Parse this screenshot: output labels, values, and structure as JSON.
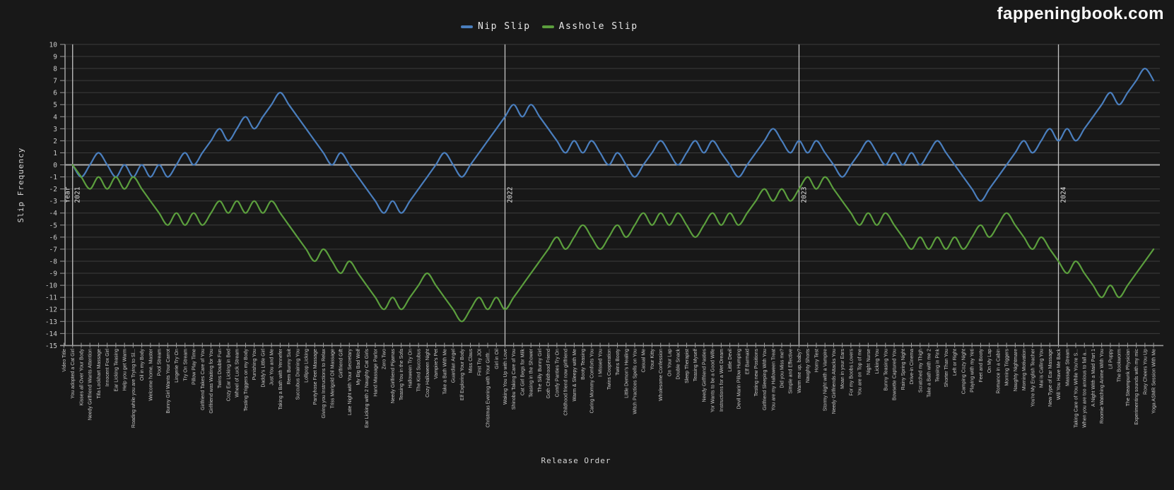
{
  "header": {
    "logo": "fappeningbook.com"
  },
  "chart_data": {
    "type": "line",
    "title": "",
    "xlabel": "Release Order",
    "ylabel": "Slip Frequency",
    "ylim": [
      -15,
      10
    ],
    "grid": true,
    "legend_position": "top-center",
    "background": "#181818",
    "categories": [
      "Video Title",
      "You adopted a Cat Girl",
      "Kisses all Over Your Body",
      "Needy Girlfriend Wants Attention",
      "Tifa Lockhart Massage",
      "Innocent Fox Girl",
      "Ear Licking Teasing",
      "Help you get Warm",
      "Roading while you are Trying to Sl...",
      "Oil in my Body",
      "Welcome home, Master",
      "Pool Stream",
      "Bunny Girl Wants Your Carrot",
      "Lingerie Try On",
      "Try On Stream",
      "Pillow Play Time",
      "Girlfriend Takes Care of You",
      "Girlfriend was Waiting for You",
      "Twins Double Fun",
      "Cozy Ear Licking in Bed",
      "Wheel of Luck Stream",
      "Testing Triggers on my Body",
      "Punishing You",
      "Daddy's Little Girl",
      "Just You and Me",
      "Taking a Bath with Yennefer",
      "Rem Bunny Suit",
      "Succubus Draining You",
      "Lollipop Licking",
      "Pantyhose Feet Massage",
      "Giving you Instructions to Relax",
      "Triss Merigold Oil Massage",
      "Girlfriend Gift",
      "Late Night with Your Secretary",
      "My Big Bad Wolf",
      "Ear Licking with 2 Naughty Cat Girls",
      "Hand Massage Parlor",
      "Zero Two",
      "Needy Girlfriend Pijamas",
      "Teasing You in the Sofa",
      "Halloween Try On",
      "The Kind Succubus",
      "Cozy Halloween Night",
      "Vampire's Pet",
      "Take a Bath With Me",
      "Guardian Angel",
      "Elf Exploring Your Body",
      "Miss Claus",
      "First Try JOI",
      "Christmas Evening with Your Girlfr...",
      "Girl in Oil",
      "Waking You Up with Love",
      "Shinobu Taking Care of You",
      "Cat Girl Begs for Milk",
      "Teasing in the Shower",
      "The Silly Bunny Girl",
      "Goth Childhood Friend",
      "Comfy Panties Try On",
      "Childhood friend now girlfriend",
      "Warm & Sleepy with Me",
      "Booty Teasing",
      "Caring Mommy Comforts You",
      "I Missed You",
      "Twins Cooperation",
      "Twins Booty",
      "Little Demon's Healing",
      "Witch Practices Spells on You",
      "Casual Me",
      "Your Kitty",
      "Wholesome Confession",
      "On Your Lap",
      "Double Snack",
      "Sleep Therapist",
      "Teasing Myself",
      "Needy Girlfriend Pasties",
      "Yor Wants to be a Good Wife",
      "Instructions for a Wet Dream",
      "Little Devil",
      "Devil Marin Pillow Humping",
      "Elf Barmaid",
      "Testing new Positions",
      "Girlfriend Sleeping With You",
      "You are my Halloween Treat",
      "Did you Miss me?",
      "Simple and Effective",
      "Warm me up, baby?",
      "Naughty Shorts",
      "Horny Test",
      "Stormy Night with a Vampire",
      "Needy Girlfriends Attacks You",
      "Moan in your Ears",
      "For my Boobs Lovers",
      "You are on Top of me",
      "Night Nurse",
      "Licking You",
      "Bunny Teasing You",
      "Bowsette Captured You",
      "Rainy Spring Night",
      "Drive-in Cinema",
      "Scratched my Thigh",
      "Take a Bath with me 2",
      "Teasing in Pink",
      "Shorter Than You",
      "Left or Right",
      "Camping Cozy Night",
      "Playing with my Yeti",
      "Feet and Booty",
      "On My Lap",
      "Romance in a Cabin",
      "Morning Triggers",
      "Naughty Nightmare",
      "Morning Motivation",
      "You're My English Teacher",
      "Mai is Calling You",
      "New Type of Ear Massage",
      "Will You Have Me Back",
      "Massage Stream",
      "Taking Care of You While You're S...",
      "When you are too anxious to fall a...",
      "A Night With a Maid Part 1",
      "Roomie Watching Anime With You",
      "Lil Puppy",
      "The Bookworm",
      "The Steampunk Physician",
      "Experimenting sounds with my mic",
      "Roxy Cheers You Up",
      "Yoga ASMR Session With Me"
    ],
    "year_markers": [
      {
        "index": 1,
        "label": "2021",
        "prefix": "Year"
      },
      {
        "index": 51,
        "label": "2022"
      },
      {
        "index": 85,
        "label": "2023"
      },
      {
        "index": 115,
        "label": "2024"
      }
    ],
    "series": [
      {
        "name": "Nip Slip",
        "color": "#4a7ebd",
        "values": [
          null,
          0,
          -1,
          0,
          1,
          0,
          -1,
          0,
          -1,
          0,
          -1,
          0,
          -1,
          0,
          1,
          0,
          1,
          2,
          3,
          2,
          3,
          4,
          3,
          4,
          5,
          6,
          5,
          4,
          3,
          2,
          1,
          0,
          1,
          0,
          -1,
          -2,
          -3,
          -4,
          -3,
          -4,
          -3,
          -2,
          -1,
          0,
          1,
          0,
          -1,
          0,
          1,
          2,
          3,
          4,
          5,
          4,
          5,
          4,
          3,
          2,
          1,
          2,
          1,
          2,
          1,
          0,
          1,
          0,
          -1,
          0,
          1,
          2,
          1,
          0,
          1,
          2,
          1,
          2,
          1,
          0,
          -1,
          0,
          1,
          2,
          3,
          2,
          1,
          2,
          1,
          2,
          1,
          0,
          -1,
          0,
          1,
          2,
          1,
          0,
          1,
          0,
          1,
          0,
          1,
          2,
          1,
          0,
          -1,
          -2,
          -3,
          -2,
          -1,
          0,
          1,
          2,
          1,
          2,
          3,
          2,
          3,
          2,
          3,
          4,
          5,
          6,
          5,
          6,
          7,
          8,
          7
        ]
      },
      {
        "name": "Asshole Slip",
        "color": "#5b9e3d",
        "values": [
          null,
          0,
          -1,
          -2,
          -1,
          -2,
          -1,
          -2,
          -1,
          -2,
          -3,
          -4,
          -5,
          -4,
          -5,
          -4,
          -5,
          -4,
          -3,
          -4,
          -3,
          -4,
          -3,
          -4,
          -3,
          -4,
          -5,
          -6,
          -7,
          -8,
          -7,
          -8,
          -9,
          -8,
          -9,
          -10,
          -11,
          -12,
          -11,
          -12,
          -11,
          -10,
          -9,
          -10,
          -11,
          -12,
          -13,
          -12,
          -11,
          -12,
          -11,
          -12,
          -11,
          -10,
          -9,
          -8,
          -7,
          -6,
          -7,
          -6,
          -5,
          -6,
          -7,
          -6,
          -5,
          -6,
          -5,
          -4,
          -5,
          -4,
          -5,
          -4,
          -5,
          -6,
          -5,
          -4,
          -5,
          -4,
          -5,
          -4,
          -3,
          -2,
          -3,
          -2,
          -3,
          -2,
          -1,
          -2,
          -1,
          -2,
          -3,
          -4,
          -5,
          -4,
          -5,
          -4,
          -5,
          -6,
          -7,
          -6,
          -7,
          -6,
          -7,
          -6,
          -7,
          -6,
          -5,
          -6,
          -5,
          -4,
          -5,
          -6,
          -7,
          -6,
          -7,
          -8,
          -9,
          -8,
          -9,
          -10,
          -11,
          -10,
          -11,
          -10,
          -9,
          -8,
          -7
        ]
      }
    ]
  }
}
